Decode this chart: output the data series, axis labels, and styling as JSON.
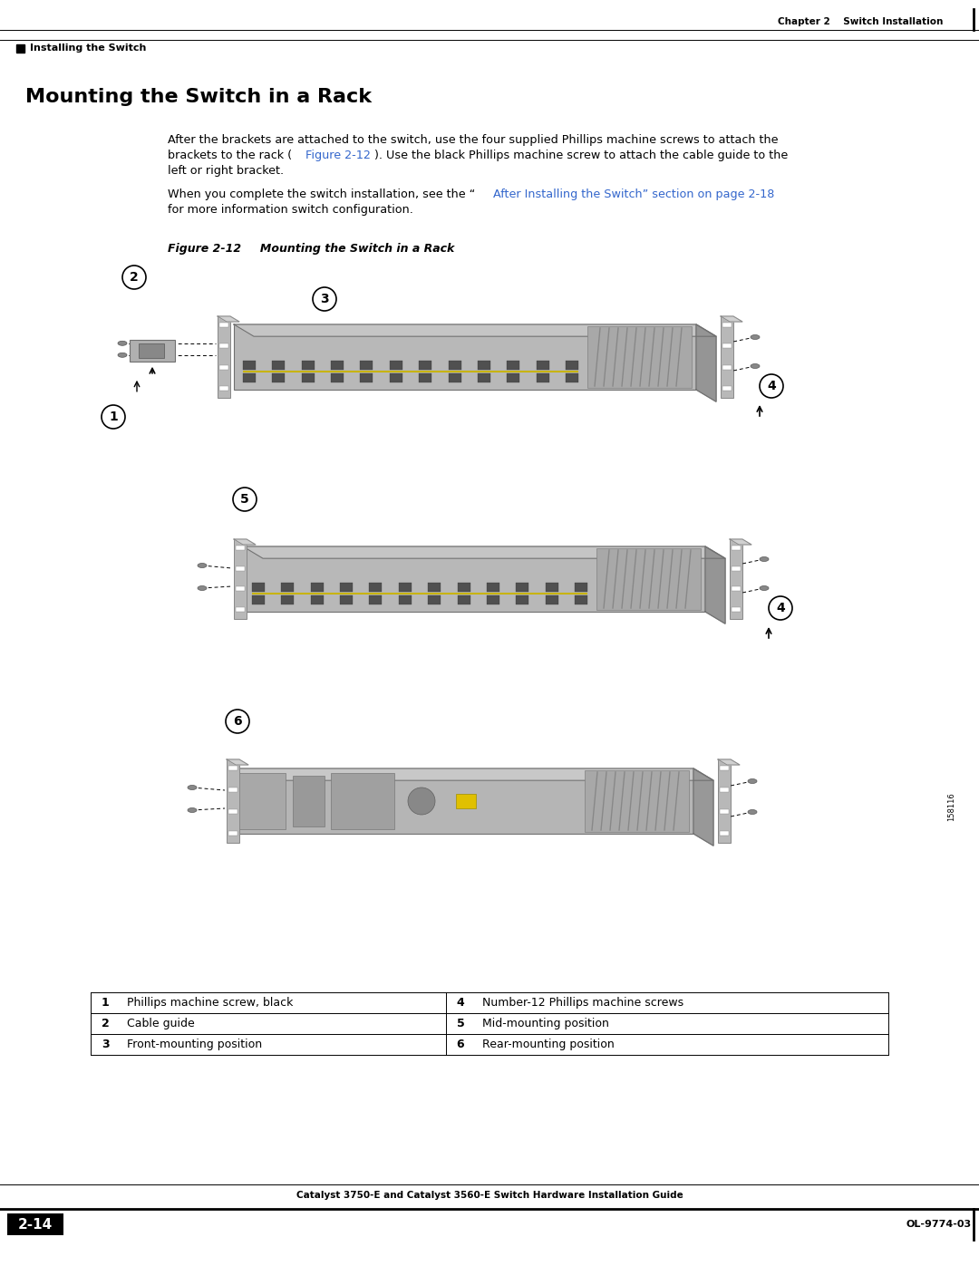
{
  "page_bg": "#ffffff",
  "header_right_text": "Chapter 2    Switch Installation",
  "header_left_text": "Installing the Switch",
  "section_title": "Mounting the Switch in a Rack",
  "para1_line1": "After the brackets are attached to the switch, use the four supplied Phillips machine screws to attach the",
  "para1_line2_a": "brackets to the rack (",
  "para1_line2_link": "Figure 2-12",
  "para1_line2_b": "). Use the black Phillips machine screw to attach the cable guide to the",
  "para1_line3": "left or right bracket.",
  "para2_line1_a": "When you complete the switch installation, see the “",
  "para2_line1_link": "After Installing the Switch” section on page 2-18",
  "para2_line2": "for more information switch configuration.",
  "figure_label": "Figure 2-12",
  "figure_title": "     Mounting the Switch in a Rack",
  "link_color": "#3366CC",
  "table_data": [
    [
      "1",
      "Phillips machine screw, black",
      "4",
      "Number-12 Phillips machine screws"
    ],
    [
      "2",
      "Cable guide",
      "5",
      "Mid-mounting position"
    ],
    [
      "3",
      "Front-mounting position",
      "6",
      "Rear-mounting position"
    ]
  ],
  "footer_guide": "Catalyst 3750-E and Catalyst 3560-E Switch Hardware Installation Guide",
  "footer_page": "2-14",
  "footer_doc": "OL-9774-03",
  "note_id": "158116"
}
